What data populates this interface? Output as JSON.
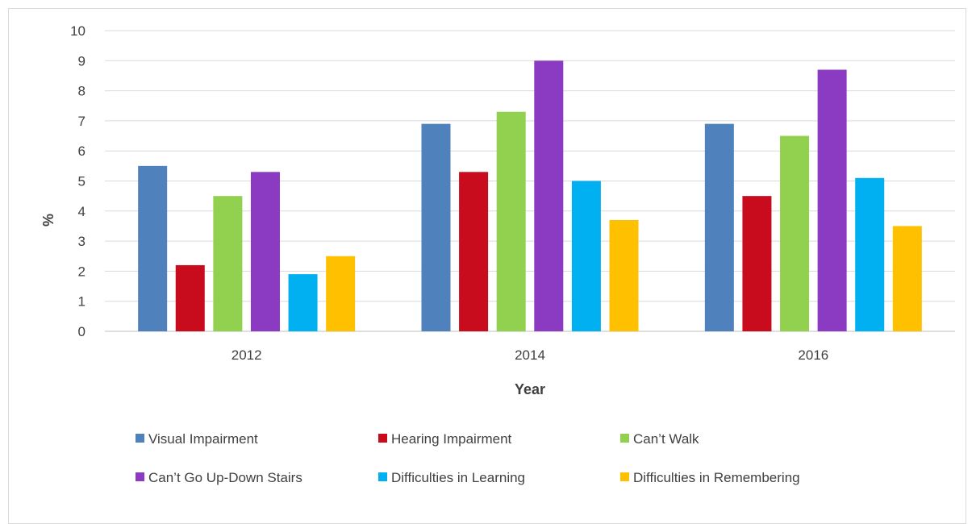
{
  "chart_data": {
    "type": "bar",
    "categories": [
      "2012",
      "2014",
      "2016"
    ],
    "series": [
      {
        "name": "Visual Impairment",
        "color": "#4f81bd",
        "values": [
          5.5,
          6.9,
          6.9
        ]
      },
      {
        "name": "Hearing Impairment",
        "color": "#c80c1e",
        "values": [
          2.2,
          5.3,
          4.5
        ]
      },
      {
        "name": "Can’t Walk",
        "color": "#92d050",
        "values": [
          4.5,
          7.3,
          6.5
        ]
      },
      {
        "name": "Can’t Go Up-Down Stairs",
        "color": "#8b3ac2",
        "values": [
          5.3,
          9.0,
          8.7
        ]
      },
      {
        "name": "Difficulties in Learning",
        "color": "#00b0f0",
        "values": [
          1.9,
          5.0,
          5.1
        ]
      },
      {
        "name": "Difficulties in Remembering",
        "color": "#ffc000",
        "values": [
          2.5,
          3.7,
          3.5
        ]
      }
    ],
    "xlabel": "Year",
    "ylabel": "%",
    "ylim": [
      0,
      10
    ],
    "yticks": [
      0,
      1,
      2,
      3,
      4,
      5,
      6,
      7,
      8,
      9,
      10
    ],
    "grid": true,
    "legend_position": "bottom"
  }
}
